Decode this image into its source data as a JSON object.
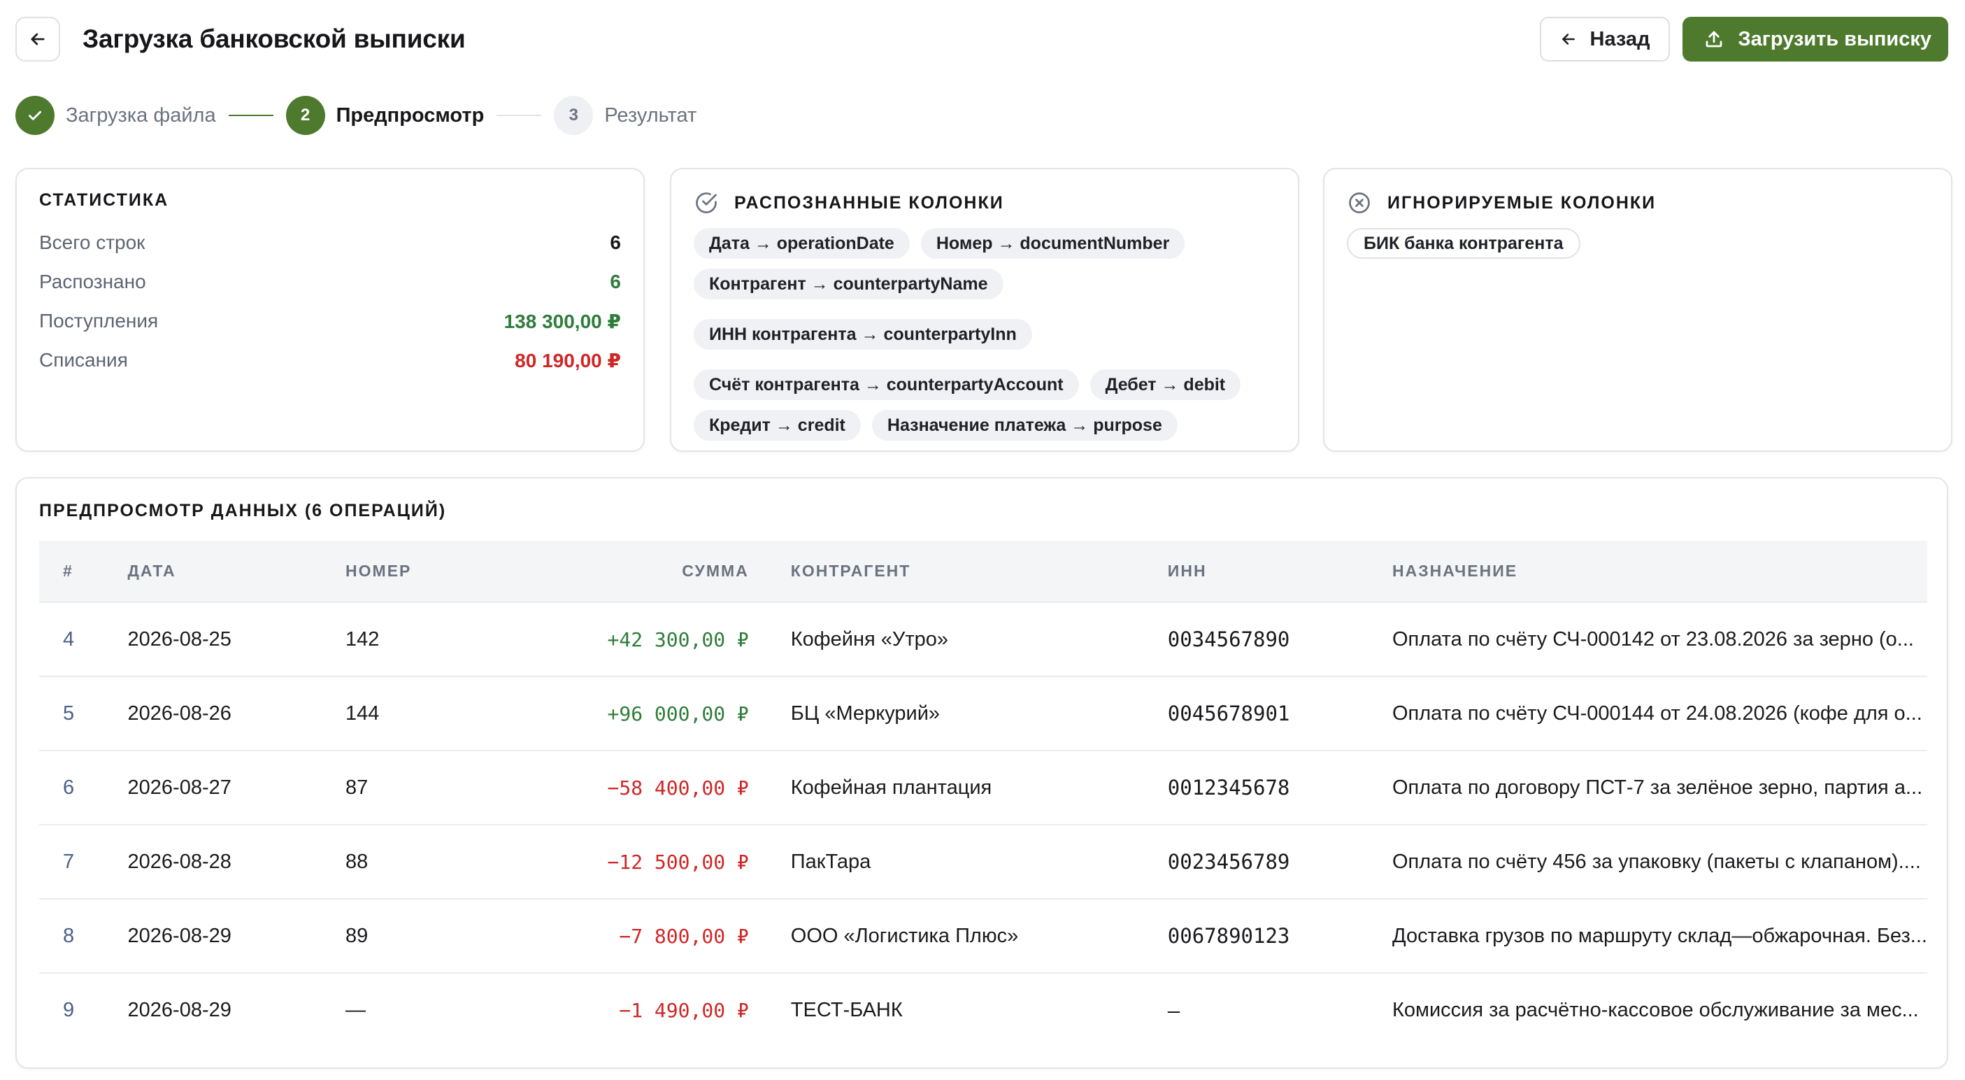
{
  "header": {
    "title": "Загрузка банковской выписки",
    "back_label": "Назад",
    "upload_label": "Загрузить выписку"
  },
  "stepper": {
    "steps": [
      {
        "number": "",
        "label": "Загрузка файла",
        "state": "done"
      },
      {
        "number": "2",
        "label": "Предпросмотр",
        "state": "active"
      },
      {
        "number": "3",
        "label": "Результат",
        "state": "pending"
      }
    ]
  },
  "stats": {
    "title": "СТАТИСТИКА",
    "rows": [
      {
        "label": "Всего строк",
        "value": "6"
      },
      {
        "label": "Распознано",
        "value": "6"
      },
      {
        "label": "Поступления",
        "value": "138 300,00 ₽"
      },
      {
        "label": "Списания",
        "value": "80 190,00 ₽"
      }
    ]
  },
  "recognized": {
    "title": "РАСПОЗНАННЫЕ КОЛОНКИ",
    "chips": [
      "Дата → operationDate",
      "Номер → documentNumber",
      "Контрагент → counterpartyName",
      "ИНН контрагента → counterpartyInn",
      "Счёт контрагента → counterpartyAccount",
      "Дебет → debit",
      "Кредит → credit",
      "Назначение платежа → purpose"
    ]
  },
  "ignored": {
    "title": "ИГНОРИРУЕМЫЕ КОЛОНКИ",
    "chips": [
      "БИК банка контрагента"
    ]
  },
  "preview": {
    "title": "ПРЕДПРОСМОТР ДАННЫХ (6 ОПЕРАЦИЙ)",
    "columns": [
      "#",
      "ДАТА",
      "НОМЕР",
      "СУММА",
      "КОНТРАГЕНТ",
      "ИНН",
      "НАЗНАЧЕНИЕ"
    ],
    "rows": [
      {
        "idx": "4",
        "date": "2026-08-25",
        "number": "142",
        "amount": "+42 300,00 ₽",
        "counterparty": "Кофейня «Утро»",
        "inn": "0034567890",
        "purpose": "Оплата по счёту СЧ-000142 от 23.08.2026 за зерно (о..."
      },
      {
        "idx": "5",
        "date": "2026-08-26",
        "number": "144",
        "amount": "+96 000,00 ₽",
        "counterparty": "БЦ «Меркурий»",
        "inn": "0045678901",
        "purpose": "Оплата по счёту СЧ-000144 от 24.08.2026 (кофе для о..."
      },
      {
        "idx": "6",
        "date": "2026-08-27",
        "number": "87",
        "amount": "−58 400,00 ₽",
        "counterparty": "Кофейная плантация",
        "inn": "0012345678",
        "purpose": "Оплата по договору ПСТ-7 за зелёное зерно, партия а..."
      },
      {
        "idx": "7",
        "date": "2026-08-28",
        "number": "88",
        "amount": "−12 500,00 ₽",
        "counterparty": "ПакТара",
        "inn": "0023456789",
        "purpose": "Оплата по счёту 456 за упаковку (пакеты с клапаном)...."
      },
      {
        "idx": "8",
        "date": "2026-08-29",
        "number": "89",
        "amount": "−7 800,00 ₽",
        "counterparty": "ООО «Логистика Плюс»",
        "inn": "0067890123",
        "purpose": "Доставка грузов по маршруту склад—обжарочная. Без..."
      },
      {
        "idx": "9",
        "date": "2026-08-29",
        "number": "—",
        "amount": "−1 490,00 ₽",
        "counterparty": "ТЕСТ-БАНК",
        "inn": "—",
        "purpose": "Комиссия за расчётно-кассовое обслуживание за мес..."
      }
    ]
  },
  "colors": {
    "accent": "#4e7a2e",
    "positive": "#2f7d3a",
    "negative": "#cf2727"
  }
}
